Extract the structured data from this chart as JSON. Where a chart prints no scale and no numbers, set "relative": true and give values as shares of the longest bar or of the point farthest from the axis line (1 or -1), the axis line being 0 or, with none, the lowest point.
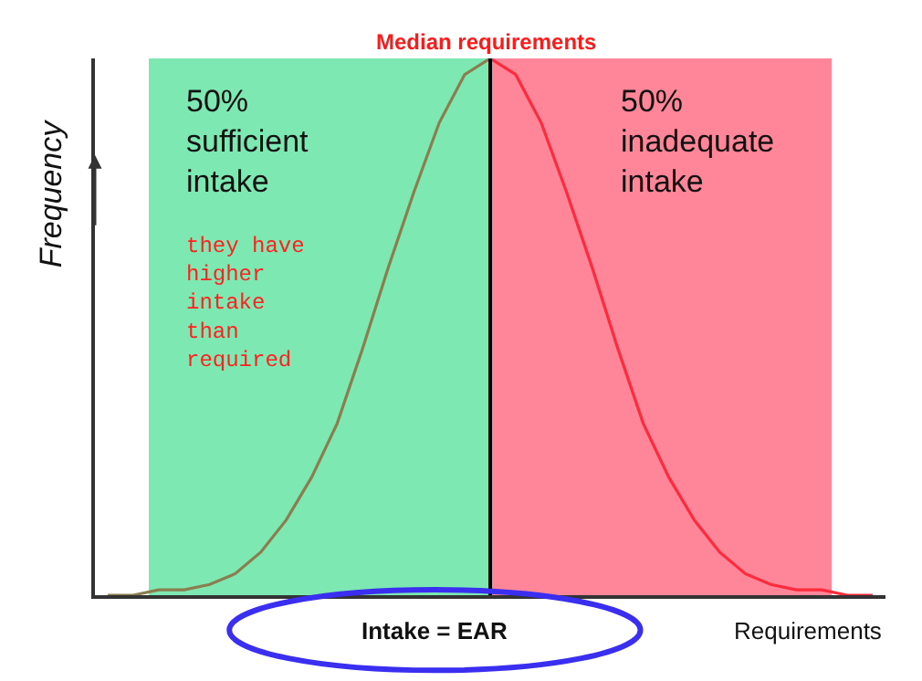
{
  "chart_data": {
    "type": "line",
    "relative": true,
    "xlabel": "Requirements",
    "ylabel": "Frequency",
    "categories": [
      null,
      null,
      null,
      null,
      null,
      null,
      null,
      null,
      null,
      null,
      null,
      null,
      null,
      null,
      null,
      null,
      null,
      null,
      null,
      null,
      null,
      null,
      null,
      null,
      null,
      null,
      null,
      null,
      null,
      null,
      null
    ],
    "series": [
      {
        "color": "#8a7d50",
        "values": [
          0.0,
          0.0,
          0.01,
          0.01,
          0.02,
          0.04,
          0.08,
          0.14,
          0.22,
          0.32,
          0.46,
          0.61,
          0.75,
          0.88,
          0.97,
          1,
          null,
          null,
          null,
          null,
          null,
          null,
          null,
          null,
          null,
          null,
          null,
          null,
          null,
          null,
          null
        ]
      },
      {
        "color": "#ff2a3c",
        "values": [
          null,
          null,
          null,
          null,
          null,
          null,
          null,
          null,
          null,
          null,
          null,
          null,
          null,
          null,
          null,
          1,
          0.97,
          0.88,
          0.75,
          0.61,
          0.46,
          0.32,
          0.22,
          0.14,
          0.08,
          0.04,
          0.02,
          0.01,
          0.01,
          0.0,
          0.0
        ]
      }
    ],
    "annotations": [
      "Median requirements",
      "50%\nsufficient\nintake",
      "50%\ninadequate\nintake",
      "they have\nhigher\nintake\nthan\nrequired",
      "Intake = EAR"
    ]
  }
}
